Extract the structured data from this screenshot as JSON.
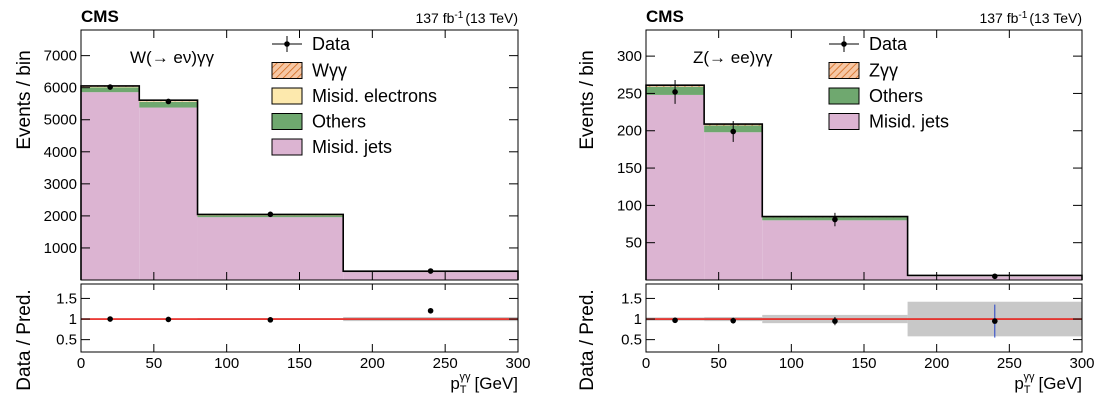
{
  "chart_data": [
    {
      "type": "bar",
      "stacked": true,
      "cms_label": "CMS",
      "lumi_label": "137 fb",
      "lumi_sup": "-1",
      "lumi_energy": "(13 TeV)",
      "channel_label": "W(→ eν)γγ",
      "xlabel": "p",
      "xlabel_sub": "T",
      "xlabel_sup": "γγ",
      "xlabel_unit": "[GeV]",
      "ylabel": "Events / bin",
      "ratio_ylabel": "Data / Pred.",
      "bin_edges": [
        0,
        40,
        80,
        180,
        300
      ],
      "xlim": [
        0,
        300
      ],
      "ylim": [
        0,
        7800
      ],
      "y_ticks": [
        1000,
        2000,
        3000,
        4000,
        5000,
        6000,
        7000
      ],
      "x_ticks": [
        0,
        50,
        100,
        150,
        200,
        250,
        300
      ],
      "ratio_ylim": [
        0.2,
        1.85
      ],
      "ratio_ticks": [
        "0.5",
        "1",
        "1.5"
      ],
      "ratio_tick_values": [
        0.5,
        1.0,
        1.5
      ],
      "series": [
        {
          "name": "Misid. jets",
          "color": "#dcb4d2",
          "values": [
            5860,
            5380,
            1960,
            250
          ]
        },
        {
          "name": "Others",
          "color": "#6fa86f",
          "values": [
            150,
            180,
            60,
            12
          ]
        },
        {
          "name": "Misid. electrons",
          "color": "#fde9ad",
          "values": [
            15,
            15,
            5,
            3
          ]
        },
        {
          "name": "Wγγ",
          "color": "#f4b184",
          "hatched": true,
          "values": [
            30,
            35,
            20,
            10
          ]
        }
      ],
      "data": {
        "name": "Data",
        "x": [
          20,
          60,
          130,
          240
        ],
        "y": [
          6020,
          5570,
          2050,
          280
        ],
        "err": [
          77,
          75,
          45,
          17
        ]
      },
      "ratio": {
        "x": [
          20,
          60,
          130,
          240
        ],
        "y": [
          1.0,
          0.99,
          0.98,
          1.2
        ],
        "err": [
          0.01,
          0.01,
          0.02,
          0.06
        ],
        "band": [
          0.01,
          0.01,
          0.02,
          0.05
        ]
      }
    },
    {
      "type": "bar",
      "stacked": true,
      "cms_label": "CMS",
      "lumi_label": "137 fb",
      "lumi_sup": "-1",
      "lumi_energy": "(13 TeV)",
      "channel_label": "Z(→ ee)γγ",
      "xlabel": "p",
      "xlabel_sub": "T",
      "xlabel_sup": "γγ",
      "xlabel_unit": "[GeV]",
      "ylabel": "Events / bin",
      "ratio_ylabel": "Data / Pred.",
      "bin_edges": [
        0,
        40,
        80,
        180,
        300
      ],
      "xlim": [
        0,
        300
      ],
      "ylim": [
        0,
        335
      ],
      "y_ticks": [
        50,
        100,
        150,
        200,
        250,
        300
      ],
      "x_ticks": [
        0,
        50,
        100,
        150,
        200,
        250,
        300
      ],
      "ratio_ylim": [
        0.2,
        1.85
      ],
      "ratio_ticks": [
        "0.5",
        "1",
        "1.5"
      ],
      "ratio_tick_values": [
        0.5,
        1.0,
        1.5
      ],
      "series": [
        {
          "name": "Misid. jets",
          "color": "#dcb4d2",
          "values": [
            248,
            198,
            80,
            5
          ]
        },
        {
          "name": "Others",
          "color": "#6fa86f",
          "values": [
            11,
            9,
            4,
            0.8
          ]
        },
        {
          "name": "Zγγ",
          "color": "#f4b184",
          "hatched": true,
          "values": [
            2,
            2,
            1,
            0.4
          ]
        }
      ],
      "data": {
        "name": "Data",
        "x": [
          20,
          60,
          130,
          240
        ],
        "y": [
          252,
          199,
          81,
          5
        ],
        "err": [
          16,
          14,
          9,
          2.2
        ]
      },
      "ratio": {
        "x": [
          20,
          60,
          130,
          240
        ],
        "y": [
          0.97,
          0.96,
          0.95,
          0.95
        ],
        "err": [
          0.06,
          0.07,
          0.1,
          0.4
        ],
        "band": [
          0.04,
          0.05,
          0.1,
          0.42
        ]
      }
    }
  ]
}
